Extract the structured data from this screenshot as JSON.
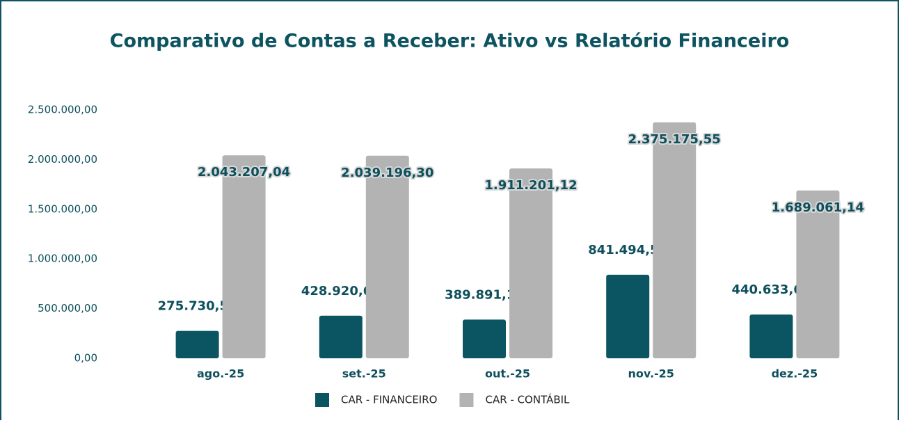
{
  "chart_data": {
    "type": "bar",
    "title": "Comparativo de Contas a Receber: Ativo vs Relatório Financeiro",
    "categories": [
      "ago.-25",
      "set.-25",
      "out.-25",
      "nov.-25",
      "dez.-25"
    ],
    "series": [
      {
        "name": "CAR - FINANCEIRO",
        "color": "#0b5563",
        "values": [
          275730.53,
          428920.66,
          389891.16,
          841494.57,
          440633.61
        ],
        "value_labels": [
          "275.730,53",
          "428.920,66",
          "389.891,16",
          "841.494,57",
          "440.633,61"
        ]
      },
      {
        "name": "CAR - CONTÁBIL",
        "color": "#b3b3b3",
        "values": [
          2043207.04,
          2039196.3,
          1911201.12,
          2375175.55,
          1689061.14
        ],
        "value_labels": [
          "2.043.207,04",
          "2.039.196,30",
          "1.911.201,12",
          "2.375.175,55",
          "1.689.061,14"
        ]
      }
    ],
    "ylim": [
      0,
      2500000
    ],
    "yticks": [
      {
        "value": 0,
        "label": "0,00"
      },
      {
        "value": 500000,
        "label": "500.000,00"
      },
      {
        "value": 1000000,
        "label": "1.000.000,00"
      },
      {
        "value": 1500000,
        "label": "1.500.000,00"
      },
      {
        "value": 2000000,
        "label": "2.000.000,00"
      },
      {
        "value": 2500000,
        "label": "2.500.000,00"
      }
    ],
    "grid": false,
    "legend": "bottom"
  }
}
